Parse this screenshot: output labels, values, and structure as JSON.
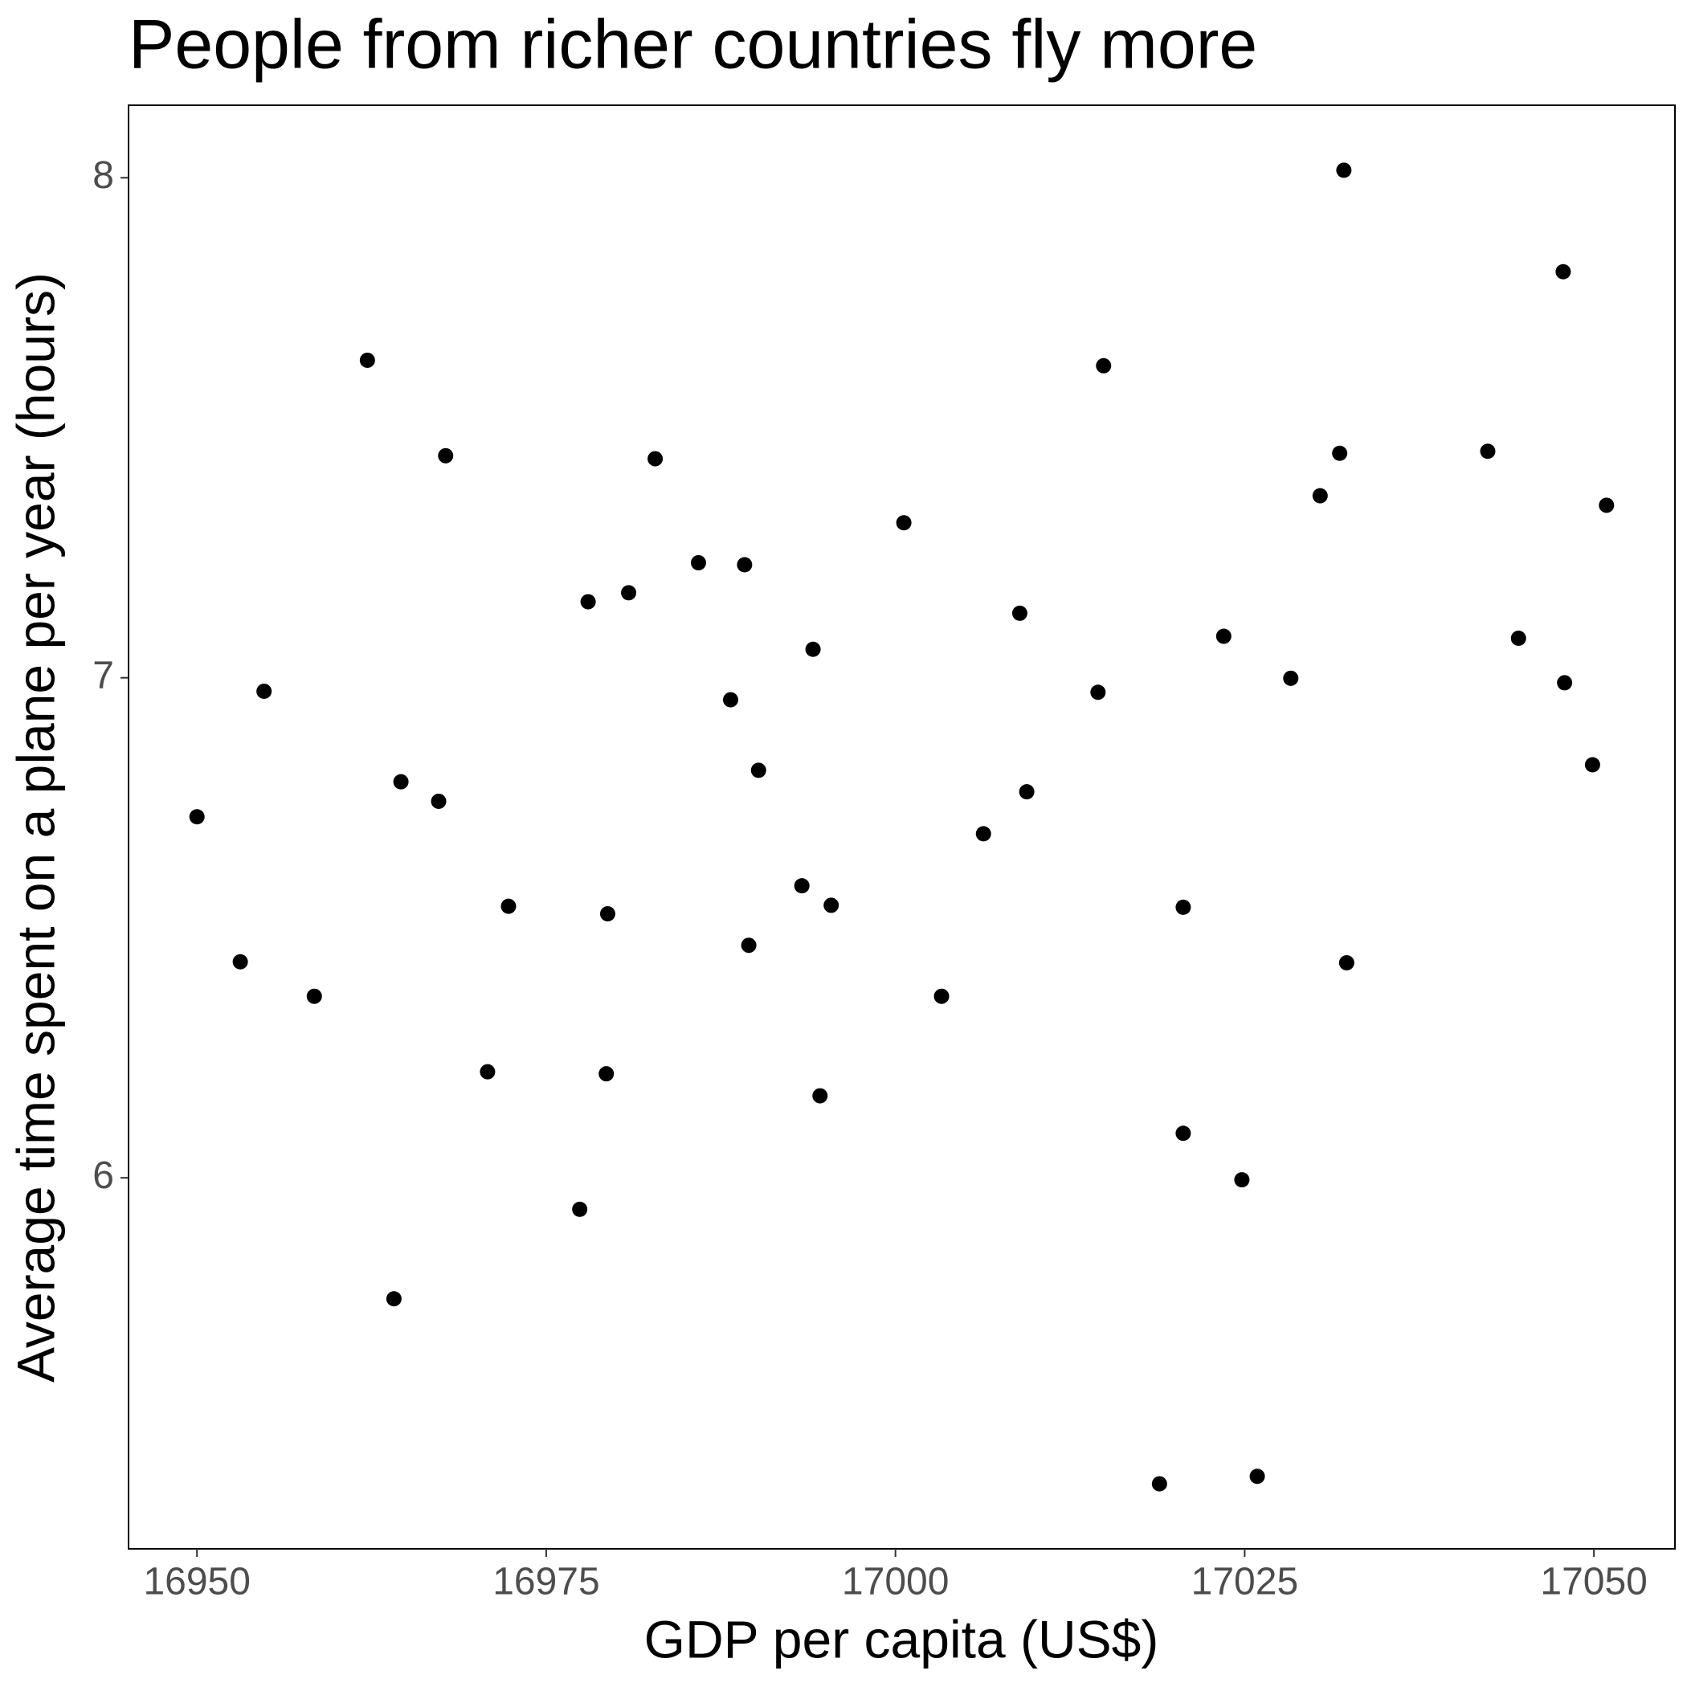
{
  "chart_data": {
    "type": "scatter",
    "title": "People from richer countries fly more",
    "x_label": "GDP per capita (US$)",
    "y_label": "Average time spent on a plane per year (hours)",
    "color": "#000000",
    "x": [
      16950.0,
      16953.1,
      16954.8,
      16958.4,
      16962.2,
      16964.6,
      16964.1,
      16967.3,
      16967.8,
      16970.8,
      16972.3,
      16977.4,
      16978.0,
      16979.4,
      16979.3,
      16980.9,
      16982.8,
      16985.9,
      16988.2,
      16989.2,
      16989.5,
      16990.2,
      16993.3,
      16994.1,
      16994.6,
      16995.4,
      17000.6,
      17003.3,
      17006.3,
      17008.9,
      17009.4,
      17014.5,
      17014.9,
      17018.9,
      17020.6,
      17020.6,
      17023.5,
      17024.8,
      17025.9,
      17028.3,
      17030.4,
      17031.8,
      17032.1,
      17032.3,
      17042.4,
      17044.6,
      17047.8,
      17047.9,
      17049.9,
      17050.9
    ],
    "values": [
      6.722,
      6.432,
      6.973,
      6.363,
      7.635,
      6.792,
      5.758,
      6.753,
      7.444,
      6.212,
      6.543,
      5.937,
      7.152,
      6.528,
      6.208,
      7.17,
      7.438,
      7.23,
      6.956,
      7.226,
      6.465,
      6.815,
      6.584,
      7.057,
      6.164,
      6.545,
      7.31,
      6.363,
      6.688,
      7.129,
      6.772,
      6.971,
      7.624,
      5.388,
      6.541,
      6.089,
      7.083,
      5.996,
      5.403,
      6.999,
      7.364,
      7.449,
      8.015,
      6.43,
      7.453,
      7.079,
      7.812,
      6.99,
      6.826,
      7.345
    ],
    "xlim": [
      16945.1,
      17055.8
    ],
    "ylim": [
      5.258,
      8.145
    ],
    "xticks": [
      16950,
      16975,
      17000,
      17025,
      17050
    ],
    "yticks": [
      6,
      7,
      8
    ]
  }
}
